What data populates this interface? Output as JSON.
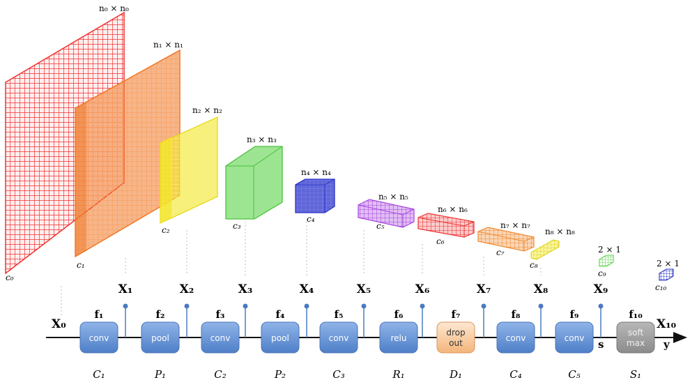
{
  "volumes": [
    {
      "dim": "n₀ × n₀",
      "channels": "c₀",
      "color": "#f03030"
    },
    {
      "dim": "n₁ × n₁",
      "channels": "c₁",
      "color": "#f07828"
    },
    {
      "dim": "n₂ × n₂",
      "channels": "c₂",
      "color": "#f2e62a"
    },
    {
      "dim": "n₃ × n₃",
      "channels": "c₃",
      "color": "#5ad24a"
    },
    {
      "dim": "n₄ × n₄",
      "channels": "c₄",
      "color": "#2a32c8"
    },
    {
      "dim": "n₅ × n₅",
      "channels": "c₅",
      "color": "#a844e0"
    },
    {
      "dim": "n₆ × n₆",
      "channels": "c₆",
      "color": "#ee3030"
    },
    {
      "dim": "n₇ × n₇",
      "channels": "c₇",
      "color": "#f08a30"
    },
    {
      "dim": "n₈ × n₈",
      "channels": "c₈",
      "color": "#f2e62a"
    },
    {
      "dim": "2 × 1",
      "channels": "c₉",
      "color": "#5ad24a"
    },
    {
      "dim": "2 × 1",
      "channels": "c₁₀",
      "color": "#2a32c8"
    }
  ],
  "pipeline": {
    "input_label": "X₀",
    "output_label": "X₁₀",
    "output_sub": "y",
    "s_label": "s",
    "stages": [
      {
        "box": "conv",
        "func": "f₁",
        "layer": "C₁",
        "out": "X₁",
        "kind": "blue"
      },
      {
        "box": "pool",
        "func": "f₂",
        "layer": "P₁",
        "out": "X₂",
        "kind": "blue"
      },
      {
        "box": "conv",
        "func": "f₃",
        "layer": "C₂",
        "out": "X₃",
        "kind": "blue"
      },
      {
        "box": "pool",
        "func": "f₄",
        "layer": "P₂",
        "out": "X₄",
        "kind": "blue"
      },
      {
        "box": "conv",
        "func": "f₅",
        "layer": "C₃",
        "out": "X₅",
        "kind": "blue"
      },
      {
        "box": "relu",
        "func": "f₆",
        "layer": "R₁",
        "out": "X₆",
        "kind": "blue"
      },
      {
        "box": "drop\nout",
        "func": "f₇",
        "layer": "D₁",
        "out": "X₇",
        "kind": "orange"
      },
      {
        "box": "conv",
        "func": "f₈",
        "layer": "C₄",
        "out": "X₈",
        "kind": "blue"
      },
      {
        "box": "conv",
        "func": "f₉",
        "layer": "C₅",
        "out": "X₉",
        "kind": "blue"
      },
      {
        "box": "soft\nmax",
        "func": "f₁₀",
        "layer": "S₁",
        "out": "",
        "kind": "gray"
      }
    ]
  },
  "colors": {
    "blue_box_top": "#8fb4e8",
    "blue_box_bottom": "#4f7fc8",
    "orange_box_top": "#fde8d2",
    "orange_box_bottom": "#f3b57a",
    "gray_box_top": "#b8b8b8",
    "gray_box_bottom": "#8c8c8c",
    "connector": "#4a7ac0"
  }
}
